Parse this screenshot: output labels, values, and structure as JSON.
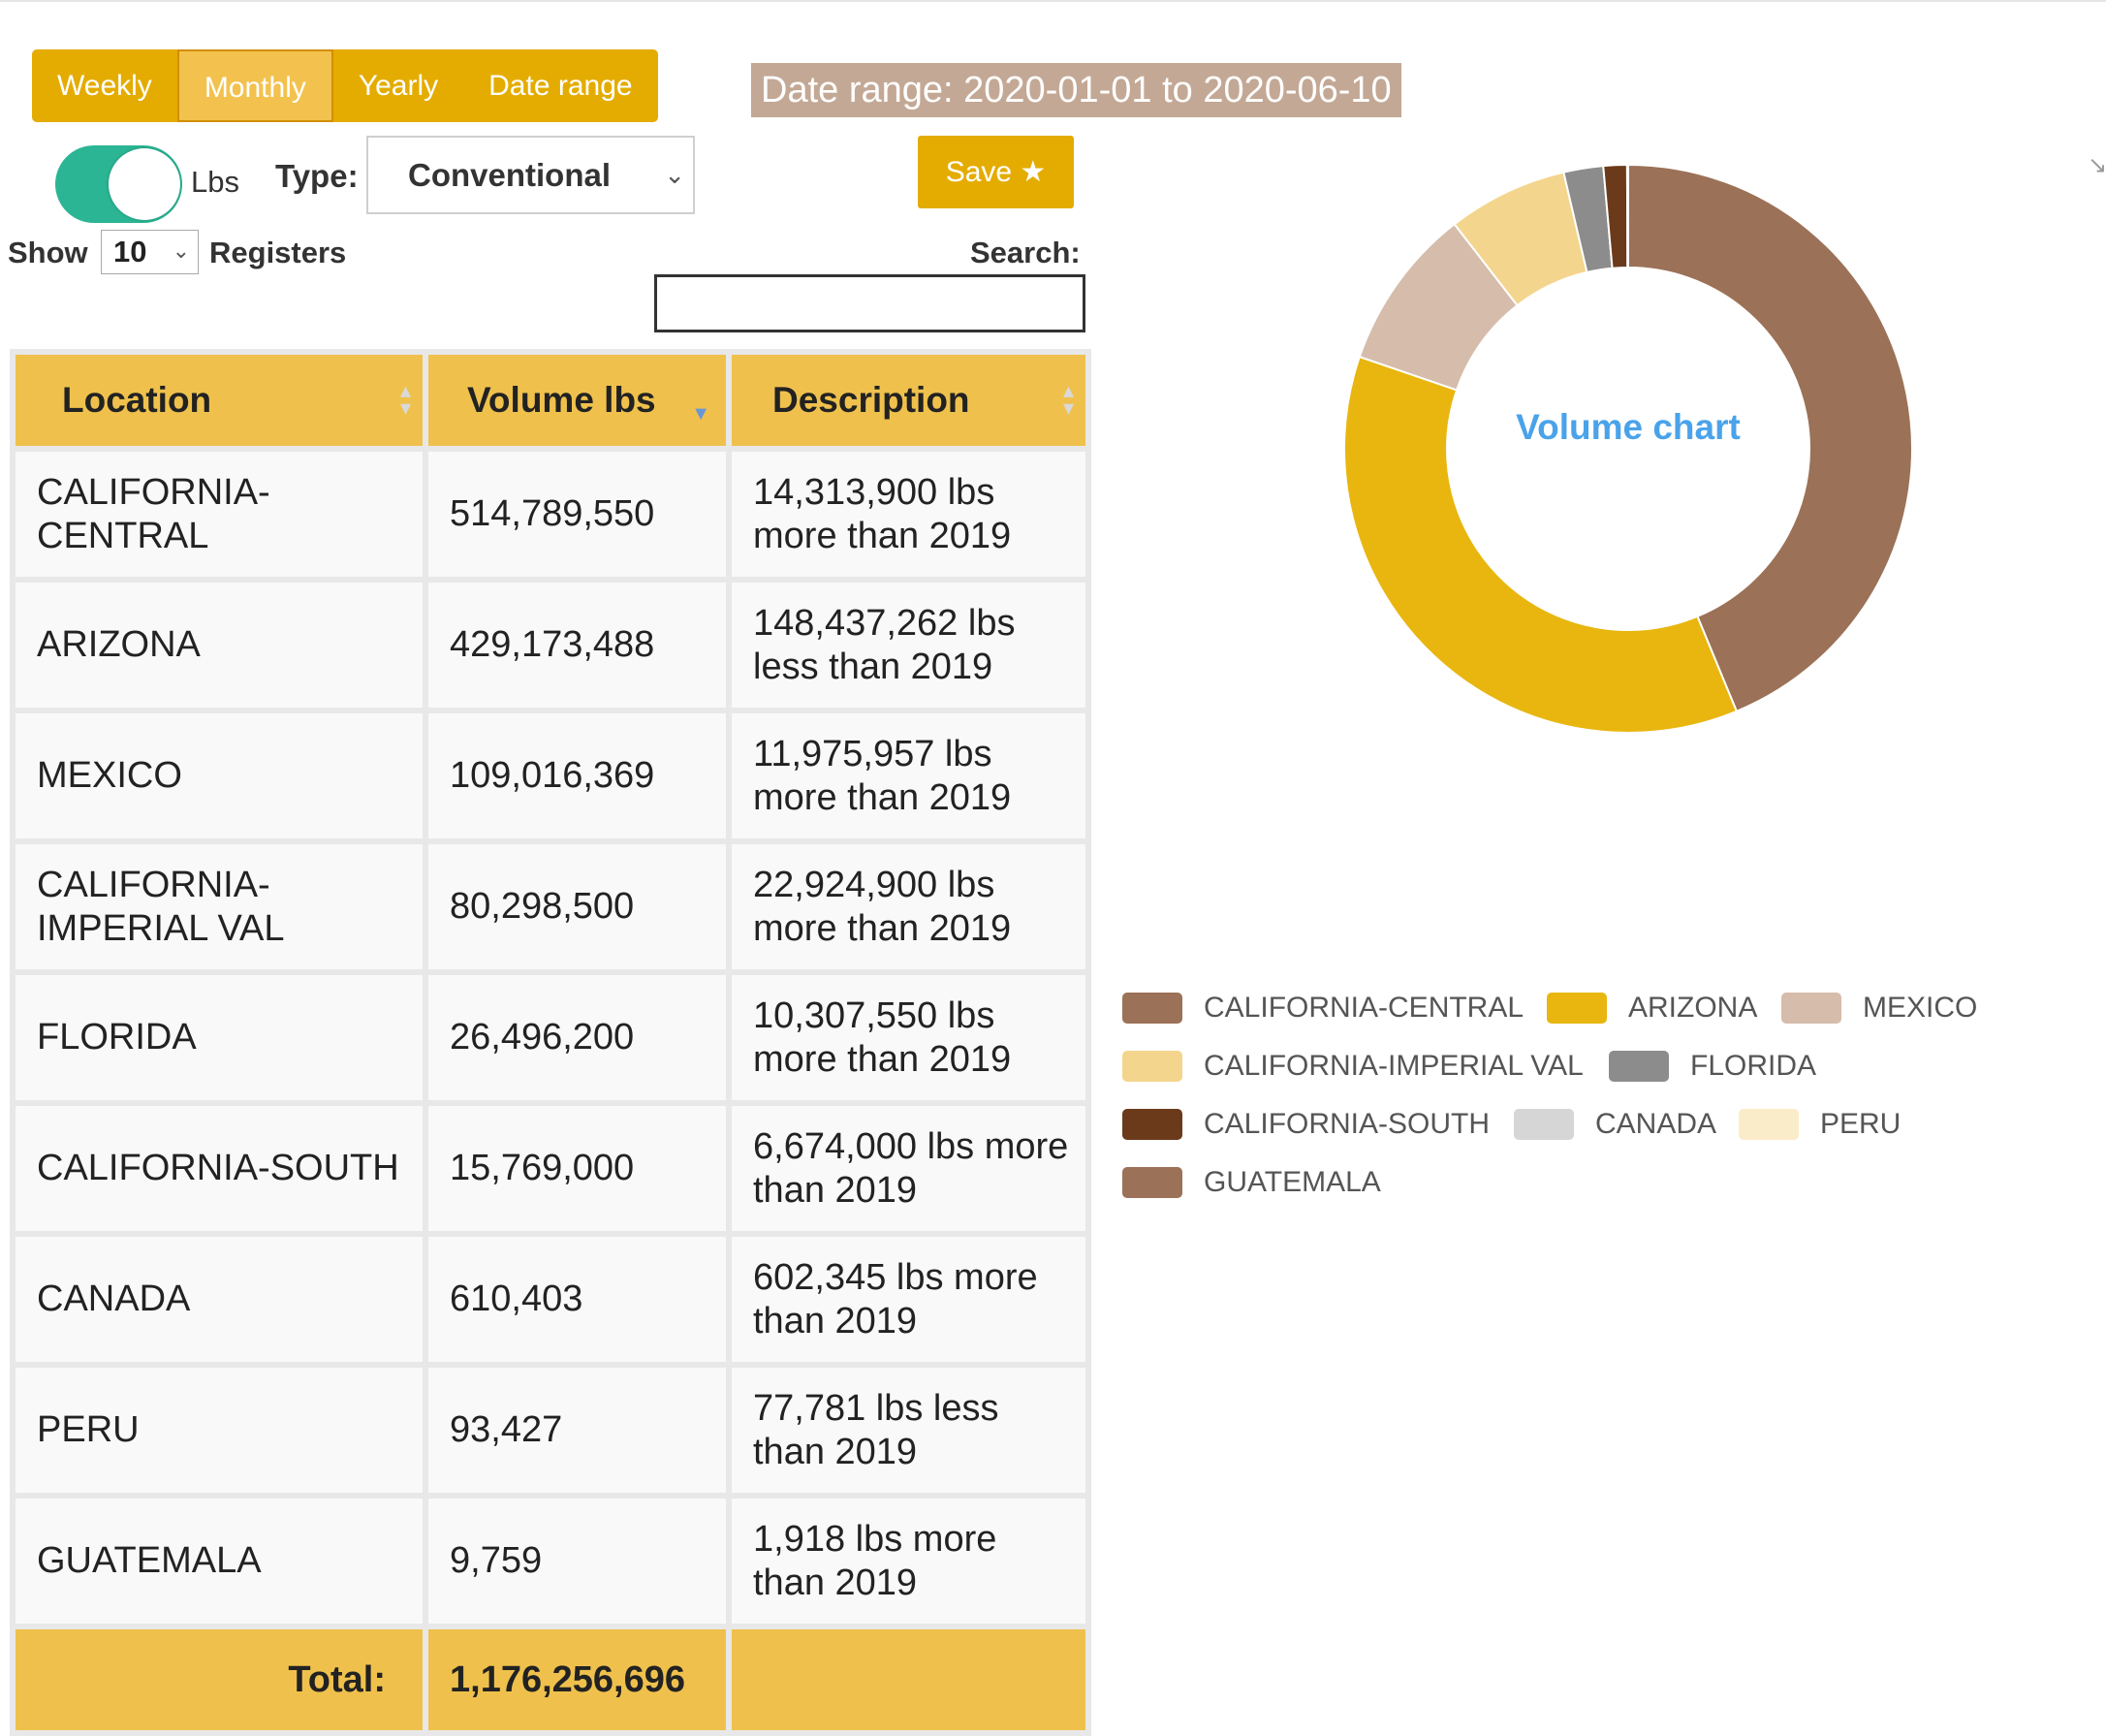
{
  "period_buttons": [
    {
      "label": "Weekly",
      "active": false
    },
    {
      "label": "Monthly",
      "active": true
    },
    {
      "label": "Yearly",
      "active": false
    },
    {
      "label": "Date range",
      "active": false
    }
  ],
  "date_range_label": "Date range: 2020-01-01 to 2020-06-10",
  "unit_toggle": {
    "label": "Lbs",
    "on": true
  },
  "type_filter": {
    "label": "Type:",
    "value": "Conventional"
  },
  "save_button": {
    "label": "Save ★"
  },
  "page_length": {
    "show_label": "Show",
    "value": "10",
    "suffix": "Registers"
  },
  "search": {
    "label": "Search:",
    "value": ""
  },
  "table": {
    "headers": [
      "Location",
      "Volume lbs",
      "Description"
    ],
    "rows": [
      {
        "location": "CALIFORNIA-CENTRAL",
        "volume": "514,789,550",
        "description": "14,313,900 lbs more than 2019"
      },
      {
        "location": "ARIZONA",
        "volume": "429,173,488",
        "description": "148,437,262 lbs less than 2019"
      },
      {
        "location": "MEXICO",
        "volume": "109,016,369",
        "description": "11,975,957 lbs more than 2019"
      },
      {
        "location": "CALIFORNIA-IMPERIAL VAL",
        "volume": "80,298,500",
        "description": "22,924,900 lbs more than 2019"
      },
      {
        "location": "FLORIDA",
        "volume": "26,496,200",
        "description": "10,307,550 lbs more than 2019"
      },
      {
        "location": "CALIFORNIA-SOUTH",
        "volume": "15,769,000",
        "description": "6,674,000 lbs more than 2019"
      },
      {
        "location": "CANADA",
        "volume": "610,403",
        "description": "602,345 lbs more than 2019"
      },
      {
        "location": "PERU",
        "volume": "93,427",
        "description": "77,781 lbs less than 2019"
      },
      {
        "location": "GUATEMALA",
        "volume": "9,759",
        "description": "1,918 lbs more than 2019"
      }
    ],
    "footer": {
      "label": "Total:",
      "value": "1,176,256,696"
    }
  },
  "chart_data": {
    "type": "pie",
    "title": "Volume chart",
    "categories": [
      "CALIFORNIA-CENTRAL",
      "ARIZONA",
      "MEXICO",
      "CALIFORNIA-IMPERIAL VAL",
      "FLORIDA",
      "CALIFORNIA-SOUTH",
      "CANADA",
      "PERU",
      "GUATEMALA"
    ],
    "values": [
      514789550,
      429173488,
      109016369,
      80298500,
      26496200,
      15769000,
      610403,
      93427,
      9759
    ],
    "colors": [
      "#9b7157",
      "#e8b60f",
      "#d6bcab",
      "#f4d58d",
      "#8c8c8c",
      "#6b3a1a",
      "#d6d6d6",
      "#faecc8",
      "#9b7157"
    ],
    "legend_position": "bottom"
  },
  "icons": {
    "sort": "sort-icon",
    "sort_desc": "sort-desc-icon",
    "expand": "expand-icon"
  }
}
